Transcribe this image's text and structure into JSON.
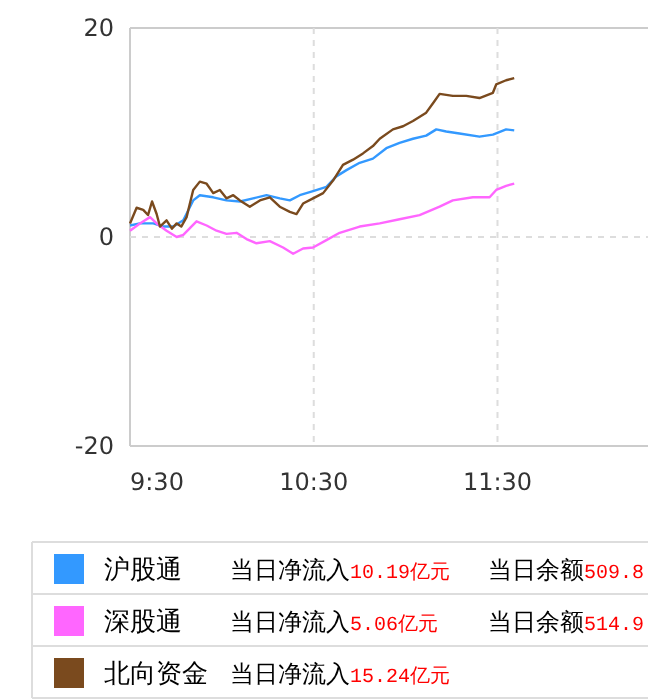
{
  "chart_data": {
    "type": "line",
    "ylim": [
      -20,
      20
    ],
    "yticks": [
      -20,
      0,
      20
    ],
    "xlim": [
      9.5,
      12.33
    ],
    "xticks": [
      {
        "value": 9.5,
        "label": "9:30"
      },
      {
        "value": 10.5,
        "label": "10:30"
      },
      {
        "value": 11.5,
        "label": "11:30"
      }
    ],
    "grid": true,
    "legend": "bottom",
    "series": [
      {
        "name": "沪股通",
        "color": "#3399ff",
        "x": [
          9.5,
          9.554,
          9.627,
          9.681,
          9.736,
          9.79,
          9.844,
          9.88,
          9.953,
          10.025,
          10.098,
          10.17,
          10.243,
          10.315,
          10.37,
          10.424,
          10.496,
          10.569,
          10.623,
          10.678,
          10.75,
          10.822,
          10.895,
          10.967,
          11.04,
          11.112,
          11.167,
          11.221,
          11.293,
          11.402,
          11.475,
          11.547,
          11.591
        ],
        "values": [
          1.1,
          1.3,
          1.3,
          1.0,
          1.0,
          1.6,
          3.5,
          4.0,
          3.8,
          3.5,
          3.4,
          3.7,
          4.0,
          3.7,
          3.5,
          4.0,
          4.4,
          4.8,
          5.8,
          6.4,
          7.1,
          7.5,
          8.5,
          9.0,
          9.4,
          9.7,
          10.3,
          10.1,
          9.9,
          9.6,
          9.8,
          10.3,
          10.2
        ]
      },
      {
        "name": "深股通",
        "color": "#ff66ff",
        "x": [
          9.5,
          9.554,
          9.609,
          9.645,
          9.699,
          9.754,
          9.79,
          9.862,
          9.917,
          9.971,
          10.025,
          10.08,
          10.134,
          10.188,
          10.261,
          10.333,
          10.388,
          10.442,
          10.496,
          10.569,
          10.641,
          10.75,
          10.859,
          10.967,
          11.076,
          11.185,
          11.257,
          11.366,
          11.457,
          11.493,
          11.547,
          11.591
        ],
        "values": [
          0.6,
          1.3,
          1.9,
          1.3,
          0.6,
          0,
          0.2,
          1.5,
          1.1,
          0.6,
          0.3,
          0.4,
          -0.2,
          -0.6,
          -0.4,
          -1.0,
          -1.6,
          -1.1,
          -1.0,
          -0.3,
          0.4,
          1.0,
          1.3,
          1.7,
          2.1,
          2.9,
          3.5,
          3.8,
          3.8,
          4.5,
          4.9,
          5.1
        ]
      },
      {
        "name": "北向资金",
        "color": "#7a4a1e",
        "x": [
          9.5,
          9.536,
          9.572,
          9.598,
          9.62,
          9.645,
          9.663,
          9.699,
          9.728,
          9.754,
          9.779,
          9.808,
          9.844,
          9.88,
          9.917,
          9.953,
          9.989,
          10.025,
          10.062,
          10.098,
          10.152,
          10.207,
          10.261,
          10.315,
          10.37,
          10.406,
          10.442,
          10.496,
          10.551,
          10.605,
          10.659,
          10.714,
          10.768,
          10.822,
          10.859,
          10.931,
          10.986,
          11.04,
          11.112,
          11.149,
          11.185,
          11.257,
          11.33,
          11.402,
          11.475,
          11.493,
          11.547,
          11.591
        ],
        "values": [
          1.3,
          2.8,
          2.6,
          2.1,
          3.4,
          2.2,
          1.0,
          1.6,
          0.8,
          1.3,
          1.0,
          1.9,
          4.5,
          5.3,
          5.1,
          4.2,
          4.5,
          3.7,
          4.0,
          3.5,
          2.9,
          3.5,
          3.8,
          2.9,
          2.4,
          2.2,
          3.2,
          3.7,
          4.2,
          5.4,
          6.9,
          7.4,
          8.0,
          8.7,
          9.4,
          10.3,
          10.6,
          11.1,
          11.9,
          12.8,
          13.7,
          13.5,
          13.5,
          13.3,
          13.8,
          14.6,
          15.0,
          15.2
        ]
      }
    ],
    "annotations": [
      "当日净流入10.19亿元",
      "当日余额509.8",
      "当日净流入5.06亿元",
      "当日余额514.9",
      "当日净流入15.24亿元"
    ]
  }
}
